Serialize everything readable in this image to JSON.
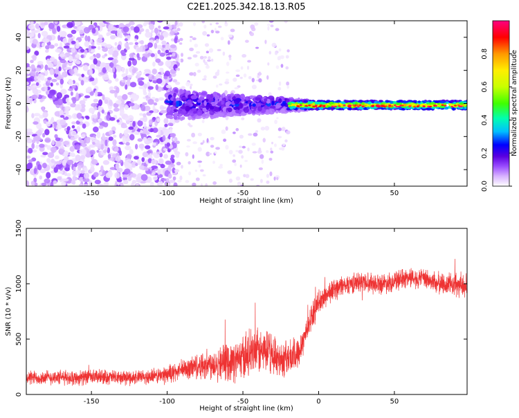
{
  "title": "C2E1.2025.342.18.13.R05",
  "chart_data": [
    {
      "type": "heatmap",
      "xlabel": "Height of straight line (km)",
      "ylabel": "Frequency (Hz)",
      "xlim": [
        -193,
        98
      ],
      "ylim": [
        -50,
        50
      ],
      "xticks": [
        -150,
        -100,
        -50,
        0,
        50
      ],
      "yticks": [
        -40,
        -20,
        0,
        20,
        40
      ],
      "colorbar": {
        "label": "Normalized spectral amplitude",
        "range": [
          0,
          1
        ],
        "ticks": [
          "0.0",
          "0.2",
          "0.4",
          "0.6",
          "0.8"
        ],
        "colormap": [
          "#ffffff",
          "#d8b3ff",
          "#9a4dff",
          "#5a00e0",
          "#0000ff",
          "#00bfff",
          "#00ffb0",
          "#40ff00",
          "#c8ff00",
          "#ffee00",
          "#ff9900",
          "#ff0000",
          "#ff0080"
        ]
      },
      "regions": [
        {
          "x_range": [
            -193,
            -95
          ],
          "description_level": 0.15,
          "spread_hz": 50
        },
        {
          "x_range": [
            -95,
            -30
          ],
          "description_level": 0.1,
          "spread_hz": 50
        },
        {
          "x_range": [
            -95,
            -5
          ],
          "description_level": 0.35,
          "spread_hz": 8
        },
        {
          "x_range": [
            -5,
            98
          ],
          "description_level": 0.7,
          "spread_hz": 3
        }
      ]
    },
    {
      "type": "line",
      "xlabel": "Height of straight line (km)",
      "ylabel": "SNR (10 * v/v)",
      "xlim": [
        -193,
        98
      ],
      "ylim": [
        0,
        1500
      ],
      "xticks": [
        -150,
        -100,
        -50,
        0,
        50
      ],
      "yticks": [
        0,
        500,
        1000,
        1500
      ],
      "series": [
        {
          "name": "SNR",
          "color": "#ee3333",
          "x": [
            -190,
            -175,
            -160,
            -145,
            -130,
            -115,
            -105,
            -95,
            -85,
            -75,
            -65,
            -55,
            -45,
            -35,
            -25,
            -15,
            -10,
            -5,
            0,
            5,
            10,
            20,
            30,
            40,
            50,
            60,
            70,
            80,
            90,
            95
          ],
          "y": [
            150,
            155,
            150,
            160,
            150,
            155,
            170,
            200,
            240,
            270,
            290,
            300,
            370,
            390,
            320,
            350,
            500,
            700,
            820,
            900,
            950,
            1000,
            1020,
            1000,
            1020,
            1060,
            1040,
            1000,
            990,
            980
          ],
          "noise_amplitude": [
            80,
            80,
            80,
            80,
            80,
            80,
            90,
            100,
            130,
            160,
            180,
            220,
            260,
            240,
            200,
            200,
            160,
            140,
            130,
            130,
            120,
            110,
            110,
            110,
            110,
            110,
            110,
            120,
            130,
            130
          ]
        }
      ]
    }
  ]
}
